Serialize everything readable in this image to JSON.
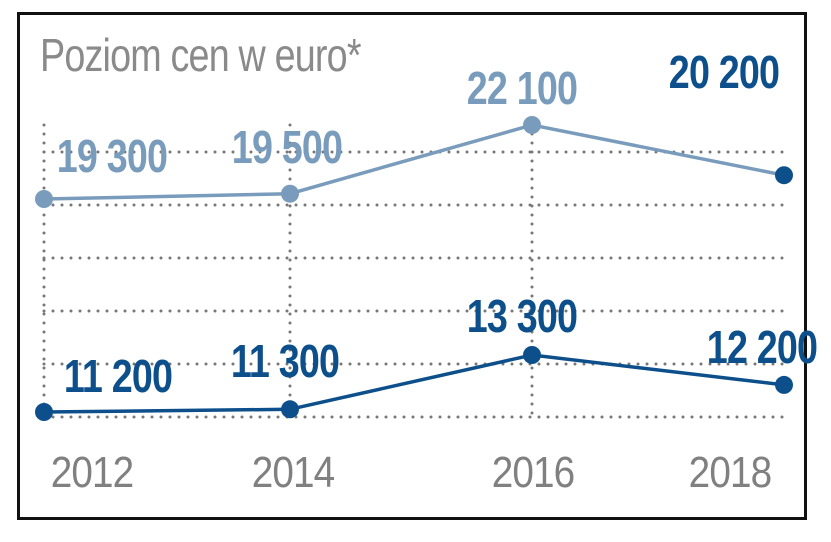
{
  "title": "Poziom cen w euro*",
  "chart_data": {
    "type": "line",
    "title": "Poziom cen w euro*",
    "categories": [
      "2012",
      "2014",
      "2016",
      "2018"
    ],
    "x": [
      2012,
      2014,
      2016,
      2018
    ],
    "series": [
      {
        "name": "upper",
        "color": "#7a9cbc",
        "values": [
          19300,
          19500,
          22100,
          20200
        ],
        "labels": [
          "19 300",
          "19 500",
          "22 100",
          "20 200"
        ],
        "label_colors": [
          "#7a9cbc",
          "#7a9cbc",
          "#7a9cbc",
          "#0d4f8b"
        ]
      },
      {
        "name": "lower",
        "color": "#0d4f8b",
        "values": [
          11200,
          11300,
          13300,
          12200
        ],
        "labels": [
          "11 200",
          "11 300",
          "13 300",
          "12 200"
        ],
        "label_colors": [
          "#0d4f8b",
          "#0d4f8b",
          "#0d4f8b",
          "#0d4f8b"
        ]
      }
    ],
    "xlabel": "",
    "ylabel": "",
    "grid": true
  }
}
